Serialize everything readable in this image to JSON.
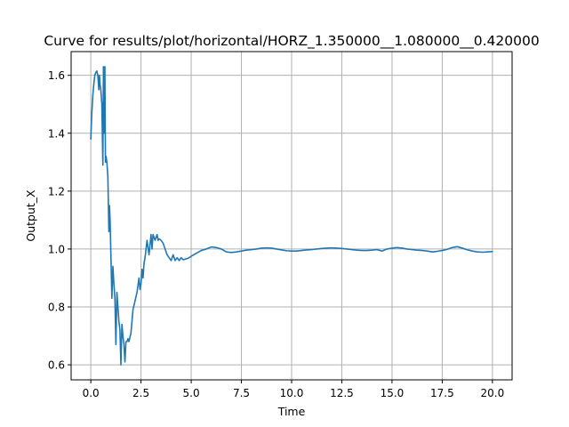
{
  "chart_data": {
    "type": "line",
    "title": "Curve for results/plot/horizontal/HORZ_1.350000__1.080000__0.420000",
    "xlabel": "Time",
    "ylabel": "Output_X",
    "xlim": [
      -0.98,
      20.98
    ],
    "ylim": [
      0.548,
      1.682
    ],
    "grid": true,
    "x_ticks": [
      0.0,
      2.5,
      5.0,
      7.5,
      10.0,
      12.5,
      15.0,
      17.5,
      20.0
    ],
    "x_tick_labels": [
      "0.0",
      "2.5",
      "5.0",
      "7.5",
      "10.0",
      "12.5",
      "15.0",
      "17.5",
      "20.0"
    ],
    "y_ticks": [
      0.6,
      0.8,
      1.0,
      1.2,
      1.4,
      1.6
    ],
    "y_tick_labels": [
      "0.6",
      "0.8",
      "1.0",
      "1.2",
      "1.4",
      "1.6"
    ],
    "series": [
      {
        "color": "#1f77b4",
        "x": [
          0.0,
          0.05,
          0.1,
          0.15,
          0.2,
          0.25,
          0.3,
          0.35,
          0.4,
          0.43,
          0.46,
          0.5,
          0.55,
          0.6,
          0.63,
          0.66,
          0.7,
          0.73,
          0.76,
          0.8,
          0.85,
          0.9,
          0.93,
          0.96,
          1.0,
          1.05,
          1.1,
          1.15,
          1.2,
          1.25,
          1.3,
          1.35,
          1.4,
          1.45,
          1.5,
          1.55,
          1.6,
          1.65,
          1.7,
          1.75,
          1.8,
          1.85,
          1.9,
          2.0,
          2.1,
          2.2,
          2.3,
          2.4,
          2.45,
          2.5,
          2.55,
          2.6,
          2.65,
          2.7,
          2.8,
          2.9,
          3.0,
          3.05,
          3.1,
          3.2,
          3.3,
          3.35,
          3.4,
          3.5,
          3.6,
          3.7,
          3.8,
          3.9,
          4.0,
          4.1,
          4.2,
          4.3,
          4.4,
          4.5,
          4.6,
          4.7,
          4.8,
          4.9,
          5.0,
          5.25,
          5.5,
          5.75,
          6.0,
          6.25,
          6.5,
          6.75,
          7.0,
          7.25,
          7.5,
          7.75,
          8.0,
          8.25,
          8.5,
          8.75,
          9.0,
          9.25,
          9.5,
          9.75,
          10.0,
          10.25,
          10.5,
          10.75,
          11.0,
          11.25,
          11.5,
          11.75,
          12.0,
          12.25,
          12.5,
          12.75,
          13.0,
          13.25,
          13.5,
          13.75,
          14.0,
          14.25,
          14.5,
          14.75,
          15.0,
          15.25,
          15.5,
          15.75,
          16.0,
          16.25,
          16.5,
          16.75,
          17.0,
          17.25,
          17.5,
          17.75,
          18.0,
          18.25,
          18.5,
          18.75,
          19.0,
          19.25,
          19.5,
          19.75,
          20.0
        ],
        "y": [
          1.38,
          1.47,
          1.53,
          1.57,
          1.6,
          1.61,
          1.615,
          1.6,
          1.55,
          1.6,
          1.57,
          1.55,
          1.5,
          1.29,
          1.63,
          1.4,
          1.63,
          1.3,
          1.32,
          1.3,
          1.25,
          1.06,
          1.15,
          1.1,
          0.98,
          0.83,
          0.94,
          0.88,
          0.83,
          0.67,
          0.85,
          0.8,
          0.75,
          0.72,
          0.6,
          0.74,
          0.7,
          0.67,
          0.61,
          0.68,
          0.68,
          0.69,
          0.68,
          0.71,
          0.79,
          0.82,
          0.85,
          0.9,
          0.86,
          0.88,
          0.93,
          0.9,
          0.95,
          0.97,
          1.03,
          0.98,
          1.05,
          1.0,
          1.05,
          1.03,
          1.05,
          1.03,
          1.035,
          1.03,
          1.02,
          1.0,
          0.98,
          0.97,
          0.96,
          0.98,
          0.96,
          0.97,
          0.96,
          0.97,
          0.963,
          0.965,
          0.967,
          0.97,
          0.975,
          0.985,
          0.995,
          1.0,
          1.007,
          1.005,
          1.0,
          0.99,
          0.988,
          0.99,
          0.993,
          0.996,
          0.998,
          1.0,
          1.003,
          1.004,
          1.003,
          1.0,
          0.997,
          0.994,
          0.993,
          0.993,
          0.995,
          0.997,
          0.998,
          1.0,
          1.002,
          1.003,
          1.004,
          1.003,
          1.002,
          1.0,
          0.998,
          0.996,
          0.995,
          0.995,
          0.996,
          0.998,
          0.993,
          1.0,
          1.003,
          1.005,
          1.003,
          1.0,
          0.998,
          0.996,
          0.995,
          0.993,
          0.99,
          0.992,
          0.995,
          0.999,
          1.005,
          1.008,
          1.003,
          0.997,
          0.993,
          0.99,
          0.989,
          0.99,
          0.991
        ]
      }
    ]
  }
}
